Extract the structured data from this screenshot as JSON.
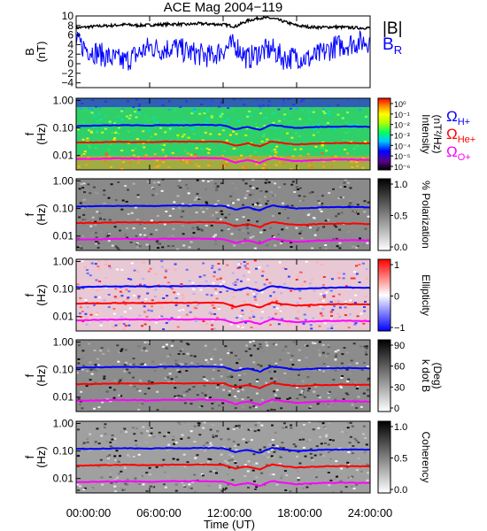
{
  "title": "ACE Mag 2004−119",
  "x_axis": {
    "label": "Time (UT)",
    "ticks": [
      "00:00:00",
      "06:00:00",
      "12:00:00",
      "18:00:00",
      "24:00:00"
    ],
    "tick_hours": [
      0,
      6,
      12,
      18,
      24
    ]
  },
  "gyro_lines": [
    {
      "label": "Ω",
      "sub": "H+",
      "color": "#0000ff"
    },
    {
      "label": "Ω",
      "sub": "He+",
      "color": "#ff0000"
    },
    {
      "label": "Ω",
      "sub": "O+",
      "color": "#ff00ff"
    }
  ],
  "panels": [
    {
      "id": "bfield",
      "ylabel_lines": [
        "B",
        "(nT)"
      ],
      "yticks": [
        "10",
        "8",
        "6",
        "4",
        "2",
        "0",
        "−2",
        "−4"
      ],
      "legend": [
        {
          "text": "|B|",
          "color": "#000000"
        },
        {
          "text": "B",
          "sub": "R",
          "color": "#0000ff"
        }
      ]
    },
    {
      "id": "intensity",
      "ylabel_lines": [
        "f",
        "(Hz)"
      ],
      "yticks": [
        "1.00",
        "0.10",
        "0.01"
      ],
      "cbar_label_lines": [
        "Intensity",
        "(nT²/Hz)"
      ],
      "cbar_ticks": [
        "10⁰",
        "10⁻¹",
        "10⁻²",
        "10⁻³",
        "10⁻⁴",
        "10⁻⁵",
        "10⁻⁶"
      ]
    },
    {
      "id": "polarization",
      "ylabel_lines": [
        "f",
        "(Hz)"
      ],
      "yticks": [
        "1.00",
        "0.10",
        "0.01"
      ],
      "cbar_label_lines": [
        "% Polarization"
      ],
      "cbar_ticks": [
        "1.0",
        "0.5",
        "0.0"
      ]
    },
    {
      "id": "ellipticity",
      "ylabel_lines": [
        "f",
        "(Hz)"
      ],
      "yticks": [
        "1.00",
        "0.10",
        "0.01"
      ],
      "cbar_label_lines": [
        "Ellipticity"
      ],
      "cbar_ticks": [
        "1",
        "0",
        "−1"
      ]
    },
    {
      "id": "kdotb",
      "ylabel_lines": [
        "f",
        "(Hz)"
      ],
      "yticks": [
        "1.00",
        "0.10",
        "0.01"
      ],
      "cbar_label_lines": [
        "k dot B",
        "(Deg)"
      ],
      "cbar_ticks": [
        "90",
        "60",
        "30",
        "0"
      ]
    },
    {
      "id": "coherency",
      "ylabel_lines": [
        "f",
        "(Hz)"
      ],
      "yticks": [
        "1.00",
        "0.10",
        "0.01"
      ],
      "cbar_label_lines": [
        "Coherency"
      ],
      "cbar_ticks": [
        "1.0",
        "0.5",
        "0.0"
      ]
    }
  ],
  "chart_data": {
    "type": "line",
    "title": "ACE Mag 2004−119",
    "xlabel": "Time (UT)",
    "xlim": [
      0,
      24
    ],
    "x_hours": [
      0,
      1,
      2,
      3,
      4,
      5,
      6,
      7,
      8,
      9,
      10,
      11,
      12,
      13,
      14,
      15,
      16,
      17,
      18,
      19,
      20,
      21,
      22,
      23,
      24
    ],
    "field_panel": {
      "ylabel": "B (nT)",
      "ylim": [
        -5,
        10
      ],
      "series": [
        {
          "name": "|B|",
          "color": "#000000",
          "values": [
            7.5,
            7.7,
            7.9,
            8.0,
            8.2,
            8.0,
            8.1,
            8.2,
            8.3,
            8.2,
            8.4,
            8.3,
            8.2,
            7.8,
            9.0,
            9.6,
            9.5,
            8.8,
            8.0,
            7.7,
            7.6,
            7.7,
            7.6,
            7.5,
            7.5
          ]
        },
        {
          "name": "B",
          "name_sub": "R",
          "color": "#0000ff",
          "values": [
            4.5,
            3.0,
            2.0,
            1.0,
            0.5,
            2.0,
            3.5,
            3.0,
            3.5,
            2.5,
            2.0,
            1.5,
            3.0,
            4.0,
            1.0,
            2.5,
            3.0,
            1.0,
            1.5,
            1.0,
            2.0,
            3.5,
            4.0,
            4.5,
            4.8
          ]
        }
      ]
    },
    "gyrofrequency_hz": {
      "ylabel": "f (Hz)",
      "yscale": "log",
      "ylim": [
        0.003,
        1.2
      ],
      "series": [
        {
          "name": "ΩH+",
          "color": "#0000ff",
          "values": [
            0.118,
            0.12,
            0.122,
            0.124,
            0.126,
            0.124,
            0.122,
            0.126,
            0.128,
            0.126,
            0.129,
            0.127,
            0.125,
            0.09,
            0.11,
            0.085,
            0.13,
            0.112,
            0.1,
            0.105,
            0.11,
            0.112,
            0.114,
            0.112,
            0.11
          ]
        },
        {
          "name": "ΩHe+",
          "color": "#ff0000",
          "values": [
            0.0295,
            0.03,
            0.0305,
            0.031,
            0.0315,
            0.031,
            0.0305,
            0.0315,
            0.032,
            0.0315,
            0.0322,
            0.0318,
            0.0312,
            0.0225,
            0.0275,
            0.0212,
            0.0325,
            0.028,
            0.025,
            0.0262,
            0.0275,
            0.028,
            0.0285,
            0.028,
            0.0275
          ]
        },
        {
          "name": "ΩO+",
          "color": "#ff00ff",
          "values": [
            0.0074,
            0.0075,
            0.0076,
            0.0078,
            0.0079,
            0.0078,
            0.0076,
            0.0079,
            0.008,
            0.0079,
            0.0081,
            0.0079,
            0.0078,
            0.0056,
            0.0069,
            0.0053,
            0.0081,
            0.007,
            0.0062,
            0.0066,
            0.0069,
            0.007,
            0.0071,
            0.007,
            0.0069
          ]
        }
      ]
    }
  }
}
